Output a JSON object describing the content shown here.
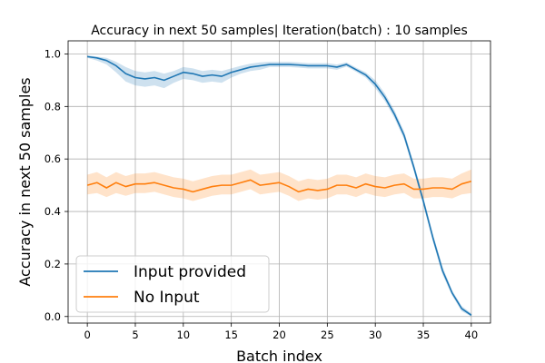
{
  "chart_data": {
    "type": "line",
    "title": "Accuracy in next 50 samples| Iteration(batch) : 10 samples",
    "xlabel": "Batch index",
    "ylabel": "Accuracy in next 50 samples",
    "xlim": [
      -2,
      42
    ],
    "ylim": [
      -0.025,
      1.05
    ],
    "xticks": [
      0,
      5,
      10,
      15,
      20,
      25,
      30,
      35,
      40
    ],
    "yticks": [
      0.0,
      0.2,
      0.4,
      0.6,
      0.8,
      1.0
    ],
    "grid": true,
    "legend_position": "lower-left",
    "x": [
      0,
      1,
      2,
      3,
      4,
      5,
      6,
      7,
      8,
      9,
      10,
      11,
      12,
      13,
      14,
      15,
      16,
      17,
      18,
      19,
      20,
      21,
      22,
      23,
      24,
      25,
      26,
      27,
      28,
      29,
      30,
      31,
      32,
      33,
      34,
      35,
      36,
      37,
      38,
      39,
      40
    ],
    "series": [
      {
        "name": "Input provided",
        "color": "#1f77b4",
        "values": [
          0.99,
          0.985,
          0.975,
          0.955,
          0.925,
          0.91,
          0.905,
          0.91,
          0.9,
          0.915,
          0.93,
          0.925,
          0.915,
          0.92,
          0.915,
          0.93,
          0.94,
          0.95,
          0.955,
          0.96,
          0.96,
          0.96,
          0.958,
          0.955,
          0.955,
          0.955,
          0.95,
          0.96,
          0.94,
          0.92,
          0.885,
          0.835,
          0.77,
          0.69,
          0.57,
          0.44,
          0.3,
          0.175,
          0.09,
          0.03,
          0.005
        ],
        "lower": [
          0.985,
          0.975,
          0.96,
          0.93,
          0.895,
          0.88,
          0.875,
          0.88,
          0.87,
          0.89,
          0.905,
          0.9,
          0.89,
          0.895,
          0.89,
          0.91,
          0.925,
          0.935,
          0.94,
          0.95,
          0.95,
          0.95,
          0.948,
          0.945,
          0.945,
          0.945,
          0.94,
          0.952,
          0.932,
          0.91,
          0.87,
          0.82,
          0.755,
          0.675,
          0.555,
          0.425,
          0.285,
          0.16,
          0.08,
          0.02,
          0.0
        ],
        "upper": [
          0.995,
          0.99,
          0.985,
          0.97,
          0.95,
          0.935,
          0.93,
          0.935,
          0.925,
          0.935,
          0.95,
          0.945,
          0.935,
          0.94,
          0.935,
          0.945,
          0.955,
          0.963,
          0.968,
          0.97,
          0.97,
          0.97,
          0.968,
          0.965,
          0.965,
          0.965,
          0.96,
          0.968,
          0.948,
          0.93,
          0.9,
          0.85,
          0.785,
          0.705,
          0.585,
          0.455,
          0.315,
          0.19,
          0.1,
          0.04,
          0.012
        ]
      },
      {
        "name": "No Input",
        "color": "#ff7f0e",
        "values": [
          0.5,
          0.51,
          0.49,
          0.51,
          0.495,
          0.505,
          0.505,
          0.51,
          0.5,
          0.49,
          0.485,
          0.475,
          0.485,
          0.495,
          0.5,
          0.5,
          0.51,
          0.52,
          0.5,
          0.505,
          0.51,
          0.495,
          0.475,
          0.485,
          0.48,
          0.485,
          0.5,
          0.5,
          0.49,
          0.505,
          0.495,
          0.49,
          0.5,
          0.505,
          0.485,
          0.485,
          0.49,
          0.49,
          0.485,
          0.505,
          0.515
        ],
        "lower": [
          0.465,
          0.47,
          0.455,
          0.47,
          0.46,
          0.47,
          0.47,
          0.475,
          0.465,
          0.455,
          0.45,
          0.44,
          0.45,
          0.46,
          0.465,
          0.465,
          0.475,
          0.485,
          0.465,
          0.47,
          0.475,
          0.46,
          0.44,
          0.45,
          0.445,
          0.45,
          0.465,
          0.465,
          0.455,
          0.47,
          0.46,
          0.455,
          0.465,
          0.47,
          0.45,
          0.45,
          0.455,
          0.455,
          0.45,
          0.465,
          0.47
        ],
        "upper": [
          0.54,
          0.55,
          0.53,
          0.55,
          0.535,
          0.545,
          0.545,
          0.55,
          0.54,
          0.53,
          0.525,
          0.515,
          0.525,
          0.535,
          0.54,
          0.54,
          0.55,
          0.56,
          0.54,
          0.545,
          0.55,
          0.535,
          0.515,
          0.525,
          0.52,
          0.525,
          0.54,
          0.54,
          0.53,
          0.545,
          0.535,
          0.53,
          0.54,
          0.545,
          0.525,
          0.525,
          0.53,
          0.53,
          0.525,
          0.545,
          0.56
        ]
      }
    ]
  }
}
